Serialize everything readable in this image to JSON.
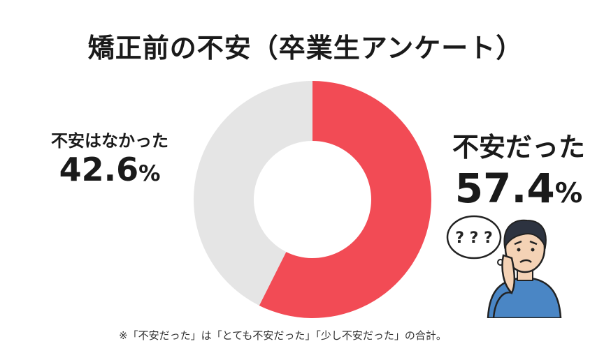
{
  "chart_data": {
    "type": "pie",
    "donut": true,
    "title": "矯正前の不安（卒業生アンケート）",
    "unit": "%",
    "slices": [
      {
        "name": "不安だった",
        "value": 57.4,
        "color": "#f24b55"
      },
      {
        "name": "不安はなかった",
        "value": 42.6,
        "color": "#e5e5e5"
      }
    ],
    "annotations": [
      "※「不安だった」は「とても不安だった」「少し不安だった」の合計。"
    ]
  },
  "labels": {
    "anxious_name": "不安だった",
    "anxious_value": "57.4",
    "not_anxious_name": "不安はなかった",
    "not_anxious_value": "42.6",
    "percent_sign": "%"
  },
  "illustration": {
    "icon": "worried-person-icon",
    "bubble_text": "? ? ?"
  }
}
